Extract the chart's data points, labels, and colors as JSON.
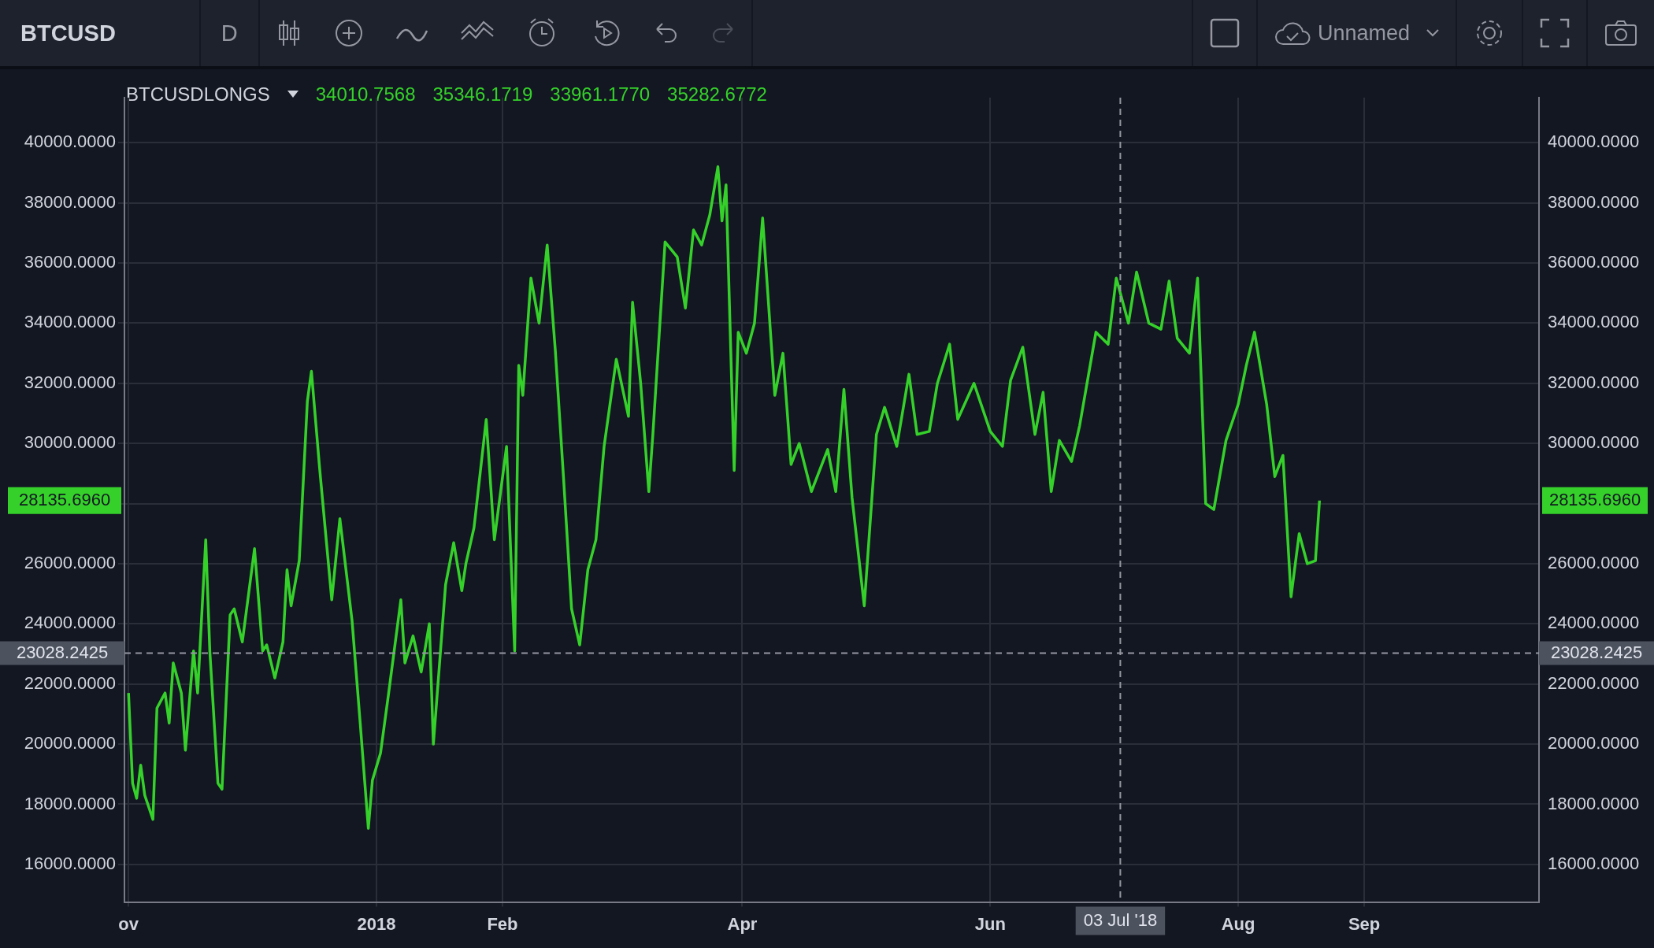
{
  "chart_data": {
    "type": "line",
    "title": "BTCUSD",
    "subtitle": "BTCUSDLONGS",
    "annotations": [
      "D",
      "Unnamed",
      "34010.7568",
      "35346.1719",
      "33961.1770",
      "35282.6772",
      "28135.6960"
    ],
    "x": [
      "2017-11-01",
      "2017-11-02",
      "2017-11-03",
      "2017-11-04",
      "2017-11-05",
      "2017-11-07",
      "2017-11-08",
      "2017-11-10",
      "2017-11-11",
      "2017-11-12",
      "2017-11-14",
      "2017-11-15",
      "2017-11-17",
      "2017-11-18",
      "2017-11-20",
      "2017-11-21",
      "2017-11-23",
      "2017-11-24",
      "2017-11-26",
      "2017-11-27",
      "2017-11-29",
      "2017-12-02",
      "2017-12-04",
      "2017-12-05",
      "2017-12-07",
      "2017-12-09",
      "2017-12-10",
      "2017-12-11",
      "2017-12-13",
      "2017-12-15",
      "2017-12-16",
      "2017-12-18",
      "2017-12-21",
      "2017-12-23",
      "2017-12-26",
      "2017-12-28",
      "2017-12-30",
      "2017-12-31",
      "2018-01-02",
      "2018-01-04",
      "2018-01-07",
      "2018-01-08",
      "2018-01-10",
      "2018-01-12",
      "2018-01-14",
      "2018-01-15",
      "2018-01-18",
      "2018-01-20",
      "2018-01-22",
      "2018-01-23",
      "2018-01-25",
      "2018-01-28",
      "2018-01-30",
      "2018-02-02",
      "2018-02-04",
      "2018-02-05",
      "2018-02-06",
      "2018-02-08",
      "2018-02-10",
      "2018-02-12",
      "2018-02-14",
      "2018-02-16",
      "2018-02-18",
      "2018-02-20",
      "2018-02-22",
      "2018-02-24",
      "2018-02-26",
      "2018-03-01",
      "2018-03-04",
      "2018-03-05",
      "2018-03-07",
      "2018-03-09",
      "2018-03-10",
      "2018-03-13",
      "2018-03-16",
      "2018-03-18",
      "2018-03-20",
      "2018-03-22",
      "2018-03-24",
      "2018-03-26",
      "2018-03-27",
      "2018-03-28",
      "2018-03-30",
      "2018-03-31",
      "2018-04-02",
      "2018-04-04",
      "2018-04-06",
      "2018-04-09",
      "2018-04-11",
      "2018-04-13",
      "2018-04-15",
      "2018-04-18",
      "2018-04-22",
      "2018-04-24",
      "2018-04-26",
      "2018-04-28",
      "2018-05-01",
      "2018-05-04",
      "2018-05-06",
      "2018-05-09",
      "2018-05-12",
      "2018-05-14",
      "2018-05-17",
      "2018-05-19",
      "2018-05-22",
      "2018-05-24",
      "2018-05-28",
      "2018-06-01",
      "2018-06-04",
      "2018-06-06",
      "2018-06-09",
      "2018-06-12",
      "2018-06-14",
      "2018-06-16",
      "2018-06-18",
      "2018-06-21",
      "2018-06-23",
      "2018-06-27",
      "2018-06-30",
      "2018-07-02",
      "2018-07-05",
      "2018-07-07",
      "2018-07-10",
      "2018-07-13",
      "2018-07-15",
      "2018-07-17",
      "2018-07-20",
      "2018-07-22",
      "2018-07-24",
      "2018-07-26",
      "2018-07-29",
      "2018-08-01",
      "2018-08-03",
      "2018-08-05",
      "2018-08-08",
      "2018-08-10",
      "2018-08-12",
      "2018-08-14",
      "2018-08-16",
      "2018-08-18",
      "2018-08-20",
      "2018-08-21"
    ],
    "series": [
      {
        "color": "#35d12a",
        "values": [
          21700,
          18700,
          18200,
          19300,
          18300,
          17500,
          21200,
          21700,
          20700,
          22700,
          21700,
          19800,
          23100,
          21700,
          26800,
          23100,
          18700,
          18500,
          24300,
          24500,
          23400,
          26500,
          23100,
          23300,
          22200,
          23400,
          25800,
          24600,
          26100,
          31400,
          32400,
          29200,
          24800,
          27500,
          24100,
          20700,
          17200,
          18800,
          19700,
          21700,
          24800,
          22700,
          23600,
          22400,
          24000,
          20000,
          25300,
          26700,
          25100,
          26000,
          27200,
          30800,
          26800,
          29900,
          23100,
          32600,
          31600,
          35500,
          34000,
          36600,
          33100,
          28900,
          24500,
          23300,
          25800,
          26800,
          29900,
          32800,
          30900,
          34700,
          32000,
          28400,
          30300,
          36700,
          36200,
          34500,
          37100,
          36600,
          37600,
          39200,
          37400,
          38600,
          29100,
          33700,
          33000,
          34000,
          37500,
          31600,
          33000,
          29300,
          30000,
          28400,
          29800,
          28400,
          31800,
          28200,
          24600,
          30300,
          31200,
          29900,
          32300,
          30300,
          30400,
          32000,
          33300,
          30800,
          32000,
          30400,
          29900,
          32100,
          33200,
          30300,
          31700,
          28400,
          30100,
          29400,
          30600,
          33700,
          33300,
          35500,
          34000,
          35700,
          34000,
          33800,
          35400,
          33500,
          33000,
          35500,
          28000,
          27800,
          30100,
          31300,
          32600,
          33700,
          31300,
          28900,
          29600,
          24900,
          27000,
          26000,
          26100,
          28100
        ]
      }
    ],
    "xlim": [
      "2017-10-31",
      "2018-10-14"
    ],
    "xticks": [
      {
        "value": "2017-11-01",
        "label": "ov"
      },
      {
        "value": "2018-01-01",
        "label": "2018"
      },
      {
        "value": "2018-02-01",
        "label": "Feb"
      },
      {
        "value": "2018-04-01",
        "label": "Apr"
      },
      {
        "value": "2018-06-01",
        "label": "Jun"
      },
      {
        "value": "2018-08-01",
        "label": "Aug"
      },
      {
        "value": "2018-09-01",
        "label": "Sep"
      }
    ],
    "ylim": [
      14750,
      41500
    ],
    "yticks": [
      {
        "value": 16000,
        "label": "16000.0000"
      },
      {
        "value": 18000,
        "label": "18000.0000"
      },
      {
        "value": 20000,
        "label": "20000.0000"
      },
      {
        "value": 22000,
        "label": "22000.0000"
      },
      {
        "value": 24000,
        "label": "24000.0000"
      },
      {
        "value": 26000,
        "label": "26000.0000"
      },
      {
        "value": 28000,
        "label": null
      },
      {
        "value": 30000,
        "label": "30000.0000"
      },
      {
        "value": 32000,
        "label": "32000.0000"
      },
      {
        "value": 34000,
        "label": "34000.0000"
      },
      {
        "value": 36000,
        "label": "36000.0000"
      },
      {
        "value": 38000,
        "label": "38000.0000"
      },
      {
        "value": 40000,
        "label": "40000.0000"
      }
    ],
    "y2lim": [
      14750,
      41500
    ],
    "y2ticks": [
      {
        "value": 16000,
        "label": "16000.0000"
      },
      {
        "value": 18000,
        "label": "18000.0000"
      },
      {
        "value": 20000,
        "label": "20000.0000"
      },
      {
        "value": 22000,
        "label": "22000.0000"
      },
      {
        "value": 24000,
        "label": "24000.0000"
      },
      {
        "value": 26000,
        "label": "26000.0000"
      },
      {
        "value": 28000,
        "label": null
      },
      {
        "value": 30000,
        "label": "30000.0000"
      },
      {
        "value": 32000,
        "label": "32000.0000"
      },
      {
        "value": 34000,
        "label": "34000.0000"
      },
      {
        "value": 36000,
        "label": "36000.0000"
      },
      {
        "value": 38000,
        "label": "38000.0000"
      },
      {
        "value": 40000,
        "label": "40000.0000"
      }
    ],
    "ref_lines": [
      {
        "axis": "y",
        "value": 23028.2425,
        "label": "23028.2425",
        "color": "#9598a1",
        "line_style": "dashed"
      },
      {
        "axis": "x",
        "value": "2018-07-03",
        "label": "03 Jul '18",
        "color": "#9598a1",
        "line_style": "dashed"
      }
    ],
    "grid": true,
    "legend": false,
    "marker": "none",
    "line_style": "solid"
  }
}
